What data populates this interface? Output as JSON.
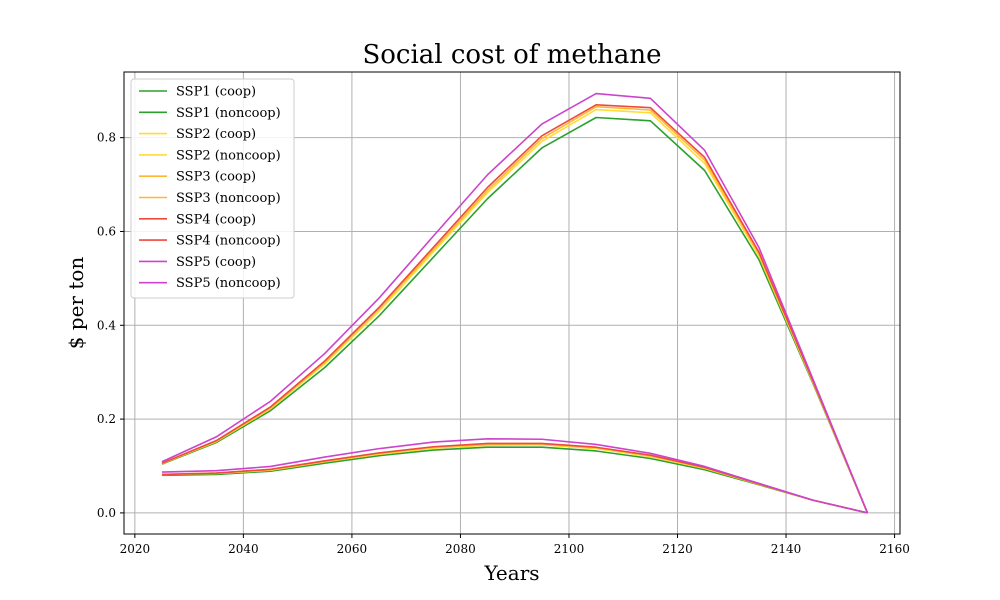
{
  "chart_data": {
    "type": "line",
    "title": "Social cost of methane",
    "xlabel": "Years",
    "ylabel": "$ per ton",
    "xlim": [
      2018,
      2161
    ],
    "ylim": [
      -0.045,
      0.94
    ],
    "xticks": [
      2020,
      2040,
      2060,
      2080,
      2100,
      2120,
      2140,
      2160
    ],
    "yticks": [
      0.0,
      0.2,
      0.4,
      0.6,
      0.8
    ],
    "ytick_labels": [
      "0.0",
      "0.2",
      "0.4",
      "0.6",
      "0.8"
    ],
    "grid": true,
    "legend_position": "upper-left",
    "x": [
      2025,
      2035,
      2045,
      2055,
      2065,
      2075,
      2085,
      2095,
      2105,
      2115,
      2125,
      2135,
      2145,
      2155
    ],
    "series": [
      {
        "name": "SSP1 (coop)",
        "color": "#2ca02c",
        "values": [
          0.104,
          0.15,
          0.218,
          0.31,
          0.42,
          0.545,
          0.67,
          0.778,
          0.843,
          0.836,
          0.73,
          0.54,
          0.275,
          0.0
        ]
      },
      {
        "name": "SSP1 (noncoop)",
        "color": "#2ca02c",
        "values": [
          0.08,
          0.082,
          0.089,
          0.106,
          0.122,
          0.134,
          0.14,
          0.14,
          0.132,
          0.116,
          0.092,
          0.06,
          0.027,
          0.0
        ]
      },
      {
        "name": "SSP2 (coop)",
        "color": "#ffdd33",
        "values": [
          0.105,
          0.152,
          0.222,
          0.318,
          0.43,
          0.556,
          0.683,
          0.792,
          0.86,
          0.853,
          0.745,
          0.548,
          0.277,
          0.0
        ]
      },
      {
        "name": "SSP2 (noncoop)",
        "color": "#ffdd33",
        "values": [
          0.082,
          0.084,
          0.091,
          0.109,
          0.125,
          0.138,
          0.144,
          0.145,
          0.137,
          0.12,
          0.095,
          0.061,
          0.027,
          0.0
        ]
      },
      {
        "name": "SSP3 (coop)",
        "color": "#ffb733",
        "values": [
          0.105,
          0.153,
          0.224,
          0.321,
          0.435,
          0.561,
          0.688,
          0.798,
          0.866,
          0.859,
          0.752,
          0.552,
          0.278,
          0.0
        ]
      },
      {
        "name": "SSP3 (noncoop)",
        "color": "#ffb733",
        "values": [
          0.082,
          0.085,
          0.092,
          0.11,
          0.127,
          0.14,
          0.146,
          0.147,
          0.139,
          0.122,
          0.096,
          0.062,
          0.027,
          0.0
        ]
      },
      {
        "name": "SSP4 (coop)",
        "color": "#ef4a3c",
        "values": [
          0.106,
          0.154,
          0.226,
          0.324,
          0.438,
          0.566,
          0.694,
          0.804,
          0.87,
          0.864,
          0.758,
          0.556,
          0.28,
          0.0
        ]
      },
      {
        "name": "SSP4 (noncoop)",
        "color": "#ef4a3c",
        "values": [
          0.082,
          0.085,
          0.093,
          0.111,
          0.128,
          0.141,
          0.148,
          0.148,
          0.14,
          0.123,
          0.097,
          0.062,
          0.027,
          0.0
        ]
      },
      {
        "name": "SSP5 (coop)",
        "color": "#cc44cc",
        "values": [
          0.109,
          0.162,
          0.238,
          0.34,
          0.458,
          0.59,
          0.721,
          0.829,
          0.894,
          0.884,
          0.773,
          0.566,
          0.284,
          0.0
        ]
      },
      {
        "name": "SSP5 (noncoop)",
        "color": "#cc44cc",
        "values": [
          0.087,
          0.09,
          0.099,
          0.119,
          0.137,
          0.151,
          0.158,
          0.157,
          0.146,
          0.127,
          0.099,
          0.063,
          0.027,
          0.0
        ]
      }
    ]
  }
}
